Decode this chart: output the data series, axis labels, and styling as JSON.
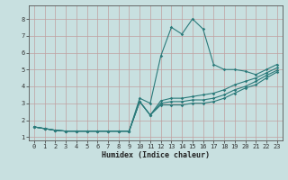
{
  "xlabel": "Humidex (Indice chaleur)",
  "xlim": [
    -0.5,
    23.5
  ],
  "ylim": [
    0.8,
    8.8
  ],
  "xticks": [
    0,
    1,
    2,
    3,
    4,
    5,
    6,
    7,
    8,
    9,
    10,
    11,
    12,
    13,
    14,
    15,
    16,
    17,
    18,
    19,
    20,
    21,
    22,
    23
  ],
  "yticks": [
    1,
    2,
    3,
    4,
    5,
    6,
    7,
    8
  ],
  "bg_color": "#c8e0e0",
  "line_color": "#2a7a7a",
  "grid_color": "#c0a0a0",
  "line1_y": [
    1.6,
    1.5,
    1.4,
    1.35,
    1.35,
    1.35,
    1.35,
    1.35,
    1.35,
    1.35,
    3.3,
    3.0,
    5.8,
    7.5,
    7.1,
    8.0,
    7.4,
    5.3,
    5.0,
    5.0,
    4.9,
    4.7,
    5.0,
    5.3
  ],
  "line2_y": [
    1.6,
    1.5,
    1.4,
    1.35,
    1.35,
    1.35,
    1.35,
    1.35,
    1.35,
    1.35,
    3.1,
    2.3,
    3.15,
    3.3,
    3.3,
    3.4,
    3.5,
    3.6,
    3.8,
    4.1,
    4.3,
    4.5,
    4.8,
    5.1
  ],
  "line3_y": [
    1.6,
    1.5,
    1.4,
    1.35,
    1.35,
    1.35,
    1.35,
    1.35,
    1.35,
    1.35,
    3.1,
    2.3,
    3.0,
    3.1,
    3.1,
    3.2,
    3.2,
    3.3,
    3.5,
    3.8,
    4.0,
    4.3,
    4.65,
    4.95
  ],
  "line4_y": [
    1.6,
    1.5,
    1.4,
    1.35,
    1.35,
    1.35,
    1.35,
    1.35,
    1.35,
    1.35,
    3.1,
    2.3,
    2.9,
    2.9,
    2.9,
    3.0,
    3.0,
    3.1,
    3.3,
    3.6,
    3.9,
    4.1,
    4.5,
    4.85
  ]
}
